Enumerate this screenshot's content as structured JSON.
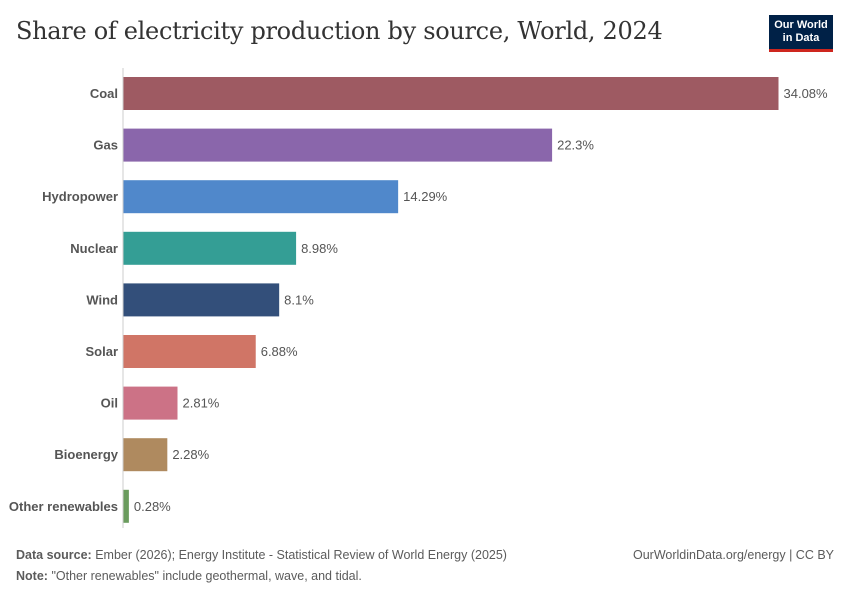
{
  "header": {
    "title": "Share of electricity production by source, World, 2024",
    "logo_line1": "Our World",
    "logo_line2": "in Data",
    "logo_color": "#002147",
    "logo_accent": "#ce261e"
  },
  "chart_data": {
    "type": "bar",
    "orientation": "horizontal",
    "title": "Share of electricity production by source, World, 2024",
    "xlabel": "",
    "ylabel": "",
    "unit": "%",
    "categories": [
      "Coal",
      "Gas",
      "Hydropower",
      "Nuclear",
      "Wind",
      "Solar",
      "Oil",
      "Bioenergy",
      "Other renewables"
    ],
    "values": [
      34.08,
      22.3,
      14.29,
      8.98,
      8.1,
      6.88,
      2.81,
      2.28,
      0.28
    ],
    "value_labels": [
      "34.08%",
      "22.3%",
      "14.29%",
      "8.98%",
      "8.1%",
      "6.88%",
      "2.81%",
      "2.28%",
      "0.28%"
    ],
    "colors": [
      "#9e5a62",
      "#8a66ab",
      "#5088cb",
      "#349e95",
      "#334f7a",
      "#d07566",
      "#cc7286",
      "#af8a5f",
      "#6b9c5e"
    ],
    "xlim": [
      0,
      34.08
    ],
    "grid": false,
    "legend": "none"
  },
  "footer": {
    "source_label": "Data source:",
    "source_text": "Ember (2026); Energy Institute - Statistical Review of World Energy (2025)",
    "site": "OurWorldinData.org/energy | CC BY",
    "note_label": "Note:",
    "note_text": "\"Other renewables\" include geothermal, wave, and tidal."
  }
}
